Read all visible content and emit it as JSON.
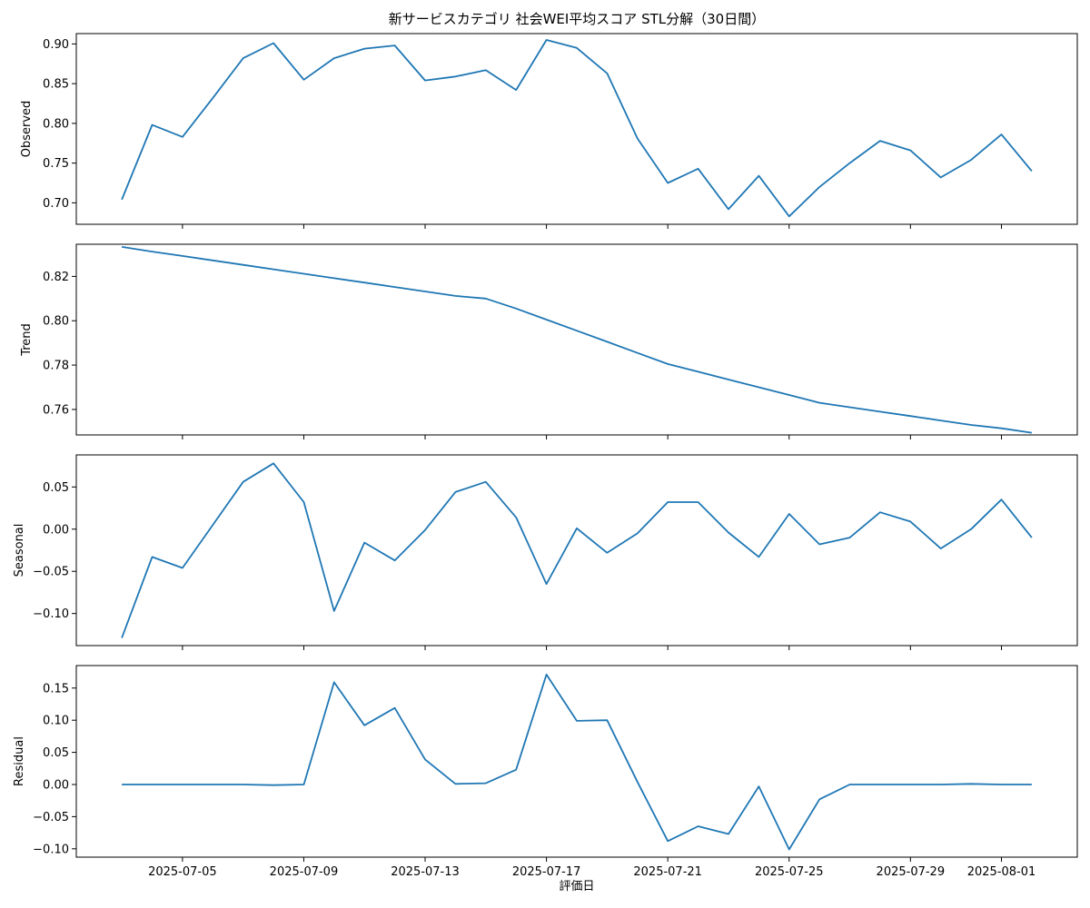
{
  "chart_data": {
    "type": "line",
    "title": "新サービスカテゴリ 社会WEI平均スコア STL分解（30日間）",
    "xlabel": "評価日",
    "x": [
      "2025-07-03",
      "2025-07-04",
      "2025-07-05",
      "2025-07-06",
      "2025-07-07",
      "2025-07-08",
      "2025-07-09",
      "2025-07-10",
      "2025-07-11",
      "2025-07-12",
      "2025-07-13",
      "2025-07-14",
      "2025-07-15",
      "2025-07-16",
      "2025-07-17",
      "2025-07-18",
      "2025-07-19",
      "2025-07-20",
      "2025-07-21",
      "2025-07-22",
      "2025-07-23",
      "2025-07-24",
      "2025-07-25",
      "2025-07-26",
      "2025-07-27",
      "2025-07-28",
      "2025-07-29",
      "2025-07-30",
      "2025-07-31",
      "2025-08-01",
      "2025-08-02"
    ],
    "x_ticks": [
      "2025-07-05",
      "2025-07-09",
      "2025-07-13",
      "2025-07-17",
      "2025-07-21",
      "2025-07-25",
      "2025-07-29",
      "2025-08-01"
    ],
    "line_color": "#1f77b4",
    "grid": false,
    "panels": [
      {
        "ylabel": "Observed",
        "ylim": [
          0.673,
          0.913
        ],
        "yticks": [
          "0.70",
          "0.75",
          "0.80",
          "0.85",
          "0.90"
        ],
        "values": [
          0.704,
          0.798,
          0.783,
          0.832,
          0.882,
          0.901,
          0.855,
          0.882,
          0.894,
          0.898,
          0.854,
          0.859,
          0.867,
          0.842,
          0.905,
          0.895,
          0.863,
          0.781,
          0.725,
          0.743,
          0.692,
          0.734,
          0.683,
          0.72,
          0.75,
          0.778,
          0.766,
          0.732,
          0.754,
          0.786,
          0.74
        ]
      },
      {
        "ylabel": "Trend",
        "ylim": [
          0.7485,
          0.8345
        ],
        "yticks": [
          "0.76",
          "0.78",
          "0.80",
          "0.82"
        ],
        "values": [
          0.8333,
          0.8312,
          0.8292,
          0.8272,
          0.8252,
          0.8232,
          0.8212,
          0.8192,
          0.8172,
          0.8152,
          0.8132,
          0.8112,
          0.81,
          0.8055,
          0.8005,
          0.7955,
          0.7905,
          0.7855,
          0.7805,
          0.777,
          0.7735,
          0.77,
          0.7665,
          0.763,
          0.761,
          0.759,
          0.757,
          0.755,
          0.753,
          0.7515,
          0.7495
        ]
      },
      {
        "ylabel": "Seasonal",
        "ylim": [
          -0.138,
          0.088
        ],
        "yticks": [
          "−0.10",
          "−0.05",
          "0.00",
          "0.05"
        ],
        "values": [
          -0.129,
          -0.033,
          -0.046,
          0.005,
          0.056,
          0.078,
          0.032,
          -0.097,
          -0.016,
          -0.037,
          -0.001,
          0.044,
          0.056,
          0.014,
          -0.065,
          0.001,
          -0.028,
          -0.005,
          0.032,
          0.032,
          -0.004,
          -0.033,
          0.018,
          -0.018,
          -0.01,
          0.02,
          0.009,
          -0.023,
          0.0,
          0.035,
          -0.01
        ]
      },
      {
        "ylabel": "Residual",
        "ylim": [
          -0.113,
          0.185
        ],
        "yticks": [
          "−0.10",
          "−0.05",
          "0.00",
          "0.05",
          "0.10",
          "0.15"
        ],
        "values": [
          0.0,
          0.0,
          0.0,
          0.0,
          0.0,
          -0.001,
          0.0,
          0.159,
          0.092,
          0.119,
          0.039,
          0.001,
          0.002,
          0.023,
          0.171,
          0.099,
          0.1,
          0.004,
          -0.088,
          -0.065,
          -0.077,
          -0.003,
          -0.101,
          -0.023,
          0.0,
          0.0,
          0.0,
          0.0,
          0.001,
          0.0,
          0.0
        ]
      }
    ]
  }
}
